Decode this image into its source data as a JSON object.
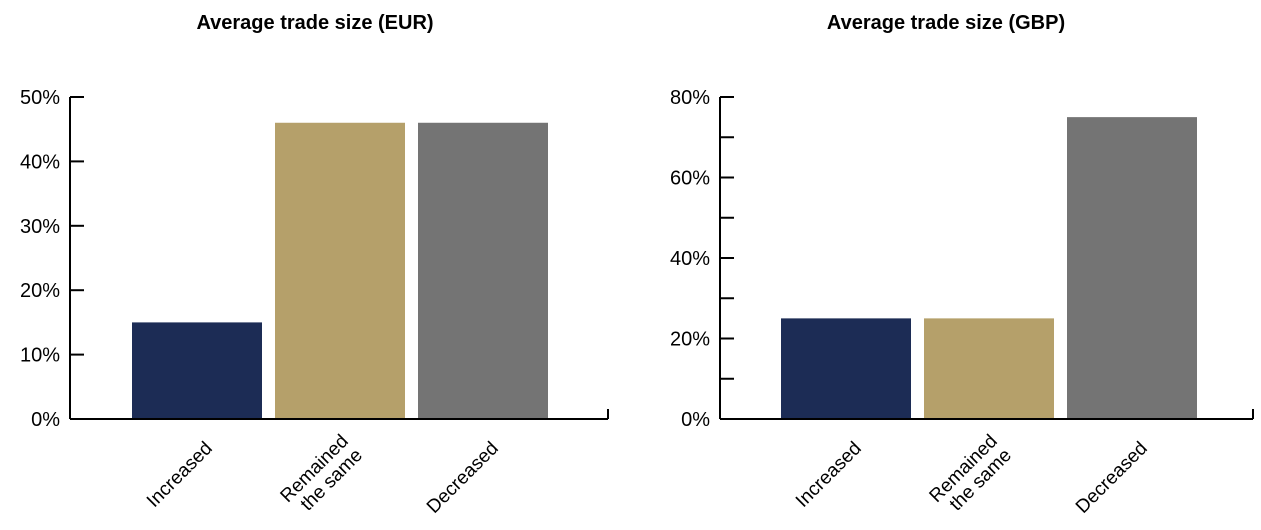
{
  "charts": [
    {
      "title": "Average trade size (EUR)",
      "chart_data": {
        "type": "bar",
        "title": "Average trade size (EUR)",
        "xlabel": "",
        "ylabel": "",
        "categories": [
          [
            "Increased"
          ],
          [
            "Remained",
            "the same"
          ],
          [
            "Decreased"
          ]
        ],
        "values": [
          15,
          46,
          46
        ],
        "colors": [
          "#1c2c55",
          "#b5a06a",
          "#747474"
        ],
        "ylim": [
          0,
          50
        ],
        "major_ticks": [
          0,
          10,
          20,
          30,
          40,
          50
        ],
        "minor_ticks": [],
        "tick_labels": [
          "0%",
          "10%",
          "20%",
          "30%",
          "40%",
          "50%"
        ],
        "grid": false,
        "legend": "none"
      }
    },
    {
      "title": "Average trade size (GBP)",
      "chart_data": {
        "type": "bar",
        "title": "Average trade size (GBP)",
        "xlabel": "",
        "ylabel": "",
        "categories": [
          [
            "Increased"
          ],
          [
            "Remained",
            "the same"
          ],
          [
            "Decreased"
          ]
        ],
        "values": [
          25,
          25,
          75
        ],
        "colors": [
          "#1c2c55",
          "#b5a06a",
          "#747474"
        ],
        "ylim": [
          0,
          80
        ],
        "major_ticks": [
          0,
          20,
          40,
          60,
          80
        ],
        "minor_ticks": [
          10,
          30,
          50,
          70
        ],
        "tick_labels": [
          "0%",
          "20%",
          "40%",
          "60%",
          "80%"
        ],
        "grid": false,
        "legend": "none"
      }
    }
  ]
}
